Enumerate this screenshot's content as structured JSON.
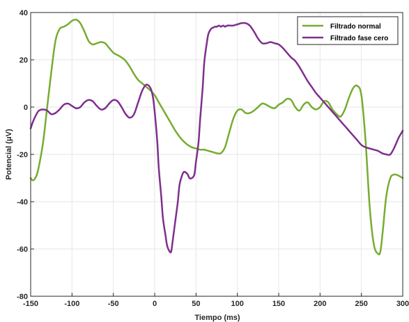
{
  "chart_data": {
    "type": "line",
    "xlabel": "Tiempo (ms)",
    "ylabel": "Potencial (μV)",
    "xlim": [
      -150,
      300
    ],
    "ylim": [
      -80,
      40
    ],
    "xticks": [
      -150,
      -100,
      -50,
      0,
      50,
      100,
      150,
      200,
      250,
      300
    ],
    "yticks": [
      -80,
      -60,
      -40,
      -20,
      0,
      20,
      40
    ],
    "grid": true,
    "legend_position": "top-right",
    "series": [
      {
        "name": "Filtrado normal",
        "color": "#77ac30",
        "x": [
          -150,
          -147,
          -143,
          -140,
          -135,
          -130,
          -125,
          -120,
          -115,
          -110,
          -105,
          -100,
          -95,
          -90,
          -85,
          -80,
          -75,
          -70,
          -65,
          -60,
          -55,
          -50,
          -45,
          -40,
          -35,
          -30,
          -25,
          -20,
          -15,
          -10,
          -5,
          0,
          5,
          10,
          15,
          20,
          25,
          30,
          35,
          40,
          45,
          50,
          55,
          60,
          65,
          70,
          75,
          80,
          85,
          90,
          95,
          100,
          105,
          110,
          115,
          120,
          125,
          130,
          135,
          140,
          145,
          150,
          155,
          160,
          165,
          170,
          175,
          180,
          185,
          190,
          195,
          200,
          205,
          210,
          215,
          220,
          225,
          230,
          235,
          240,
          245,
          250,
          255,
          260,
          265,
          270,
          273,
          276,
          280,
          285,
          290,
          295,
          300
        ],
        "y": [
          -30,
          -31,
          -29,
          -25,
          -15,
          0,
          15,
          28,
          33,
          34,
          35,
          36.5,
          37,
          35.5,
          32,
          28,
          26.5,
          27,
          27.5,
          27,
          25,
          23,
          22,
          21,
          19.5,
          17,
          14,
          11.5,
          10,
          8.5,
          7,
          5,
          2,
          -1,
          -4,
          -7,
          -10,
          -12.5,
          -14.5,
          -16,
          -17,
          -17.5,
          -18,
          -18,
          -18.5,
          -19,
          -19.5,
          -19.5,
          -17,
          -11,
          -5,
          -1.5,
          -1,
          -2.5,
          -2.5,
          -1.5,
          0,
          1.5,
          1,
          0,
          -0.5,
          1,
          2,
          3.5,
          3,
          0,
          -1.5,
          1,
          2,
          0,
          -1,
          0,
          2.5,
          2,
          -1,
          -3,
          -4,
          -1,
          4,
          8,
          9,
          5,
          -14,
          -42,
          -58,
          -62,
          -61,
          -52,
          -38,
          -30,
          -28.5,
          -29,
          -30
        ]
      },
      {
        "name": "Filtrado fase cero",
        "color": "#7e2f8e",
        "x": [
          -150,
          -147,
          -143,
          -140,
          -135,
          -130,
          -125,
          -120,
          -115,
          -110,
          -105,
          -100,
          -95,
          -90,
          -85,
          -80,
          -75,
          -70,
          -65,
          -60,
          -55,
          -50,
          -45,
          -40,
          -35,
          -30,
          -25,
          -20,
          -15,
          -10,
          -5,
          -2,
          0,
          3,
          5,
          8,
          10,
          13,
          15,
          18,
          20,
          22,
          25,
          28,
          30,
          33,
          35,
          37,
          40,
          42,
          45,
          48,
          50,
          53,
          55,
          58,
          60,
          63,
          65,
          68,
          70,
          73,
          75,
          78,
          80,
          83,
          85,
          88,
          90,
          95,
          100,
          105,
          110,
          115,
          120,
          125,
          130,
          135,
          140,
          145,
          150,
          155,
          160,
          165,
          170,
          175,
          180,
          185,
          190,
          195,
          200,
          205,
          210,
          215,
          220,
          225,
          230,
          235,
          240,
          245,
          250,
          255,
          260,
          265,
          270,
          275,
          280,
          285,
          290,
          295,
          300
        ],
        "y": [
          -9,
          -6,
          -3,
          -1.5,
          -1,
          -1.5,
          -3,
          -2.5,
          -1,
          1,
          1.5,
          0.5,
          -0.5,
          0,
          2,
          3,
          2.5,
          0.5,
          -1,
          -0.5,
          1.5,
          3,
          2.5,
          0,
          -3,
          -4.5,
          -3,
          2,
          7,
          9.5,
          8,
          4,
          -2,
          -14,
          -26,
          -38,
          -47,
          -54,
          -58.5,
          -61,
          -61,
          -56,
          -48,
          -40,
          -33,
          -29,
          -27.5,
          -27.5,
          -28.5,
          -30,
          -30,
          -28.5,
          -23,
          -15,
          -5,
          8,
          19,
          27,
          31,
          33,
          33.5,
          34,
          34,
          34.5,
          34,
          34.5,
          34,
          34.5,
          34.5,
          34.5,
          35,
          35.5,
          35.5,
          34.5,
          32,
          29,
          27,
          27,
          27.5,
          27,
          26.5,
          25,
          23,
          21,
          19.5,
          17,
          14,
          11,
          8.5,
          6,
          4,
          2,
          0,
          -2,
          -4,
          -6,
          -8,
          -10,
          -12,
          -14,
          -16,
          -17,
          -17.5,
          -18,
          -18.5,
          -19.5,
          -20,
          -20,
          -17,
          -13,
          -10
        ]
      }
    ]
  }
}
